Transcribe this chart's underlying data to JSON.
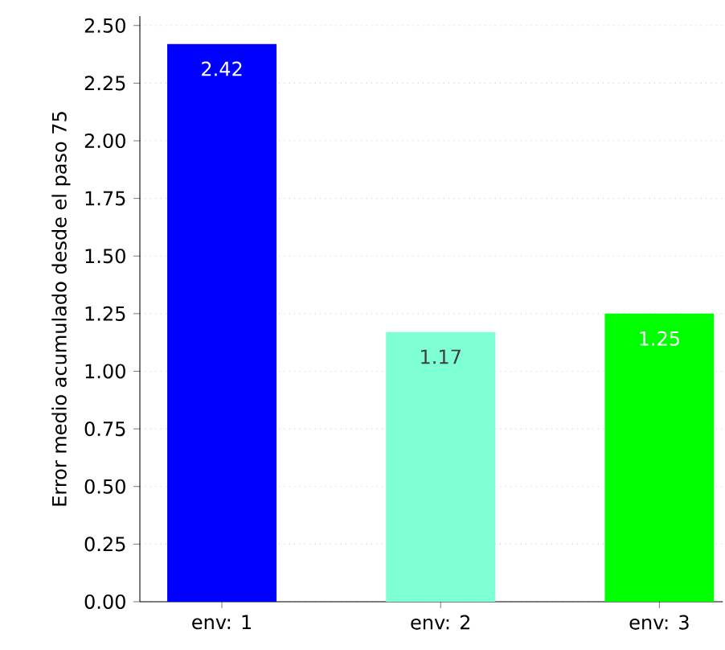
{
  "chart_data": {
    "type": "bar",
    "ylabel": "Error medio acumulado desde el paso 75",
    "categories": [
      "env: 1",
      "env: 2",
      "env: 3"
    ],
    "values": [
      2.42,
      1.17,
      1.25
    ],
    "colors": [
      "#0000ff",
      "#7fffd4",
      "#00ff00"
    ],
    "data_labels": true,
    "ylim": [
      0,
      2.541
    ],
    "yticks": [
      {
        "value": 0,
        "label": "0.00"
      },
      {
        "value": 0.25,
        "label": "0.25"
      },
      {
        "value": 0.5,
        "label": "0.50"
      },
      {
        "value": 0.75,
        "label": "0.75"
      },
      {
        "value": 1,
        "label": "1.00"
      },
      {
        "value": 1.25,
        "label": "1.25"
      },
      {
        "value": 1.5,
        "label": "1.50"
      },
      {
        "value": 1.75,
        "label": "1.75"
      },
      {
        "value": 2,
        "label": "2.00"
      },
      {
        "value": 2.25,
        "label": "2.25"
      },
      {
        "value": 2.5,
        "label": "2.50"
      }
    ],
    "grid": "y"
  }
}
